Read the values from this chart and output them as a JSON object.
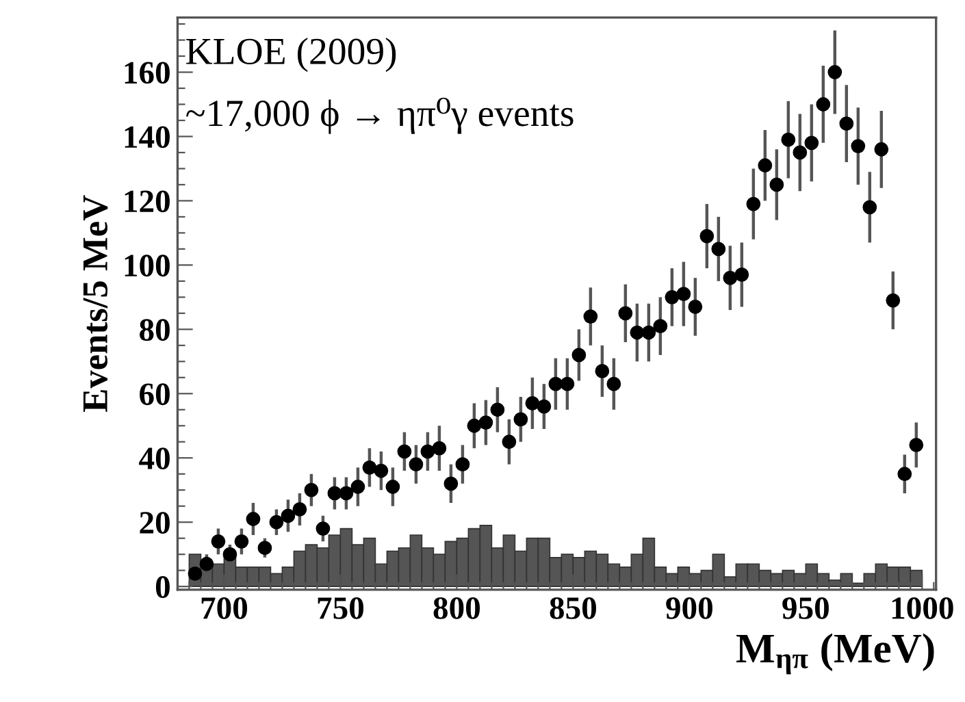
{
  "chart_data": {
    "type": "scatter",
    "xlabel": "M$_{ηπ}$ (MeV)",
    "ylabel": "Events/5 MeV",
    "annotations": [
      "KLOE (2009)",
      "~17,000 ϕ → ηπ⁰γ events"
    ],
    "xlim": [
      680,
      1006
    ],
    "ylim": [
      -1,
      177
    ],
    "xticks": [
      700,
      750,
      800,
      850,
      900,
      950,
      1000
    ],
    "yticks": [
      0,
      20,
      40,
      60,
      80,
      100,
      120,
      140,
      160
    ],
    "grid": false,
    "legend": false,
    "series": [
      {
        "type": "histogram",
        "color": "#555555",
        "bins": [
          685,
          690,
          695,
          700,
          705,
          710,
          715,
          720,
          725,
          730,
          735,
          740,
          745,
          750,
          755,
          760,
          765,
          770,
          775,
          780,
          785,
          790,
          795,
          800,
          805,
          810,
          815,
          820,
          825,
          830,
          835,
          840,
          845,
          850,
          855,
          860,
          865,
          870,
          875,
          880,
          885,
          890,
          895,
          900,
          905,
          910,
          915,
          920,
          925,
          930,
          935,
          940,
          945,
          950,
          955,
          960,
          965,
          970,
          975,
          980,
          985,
          990,
          995,
          1000
        ],
        "values": [
          10,
          7,
          7,
          10,
          6,
          6,
          6,
          4,
          6,
          11,
          13,
          12,
          16,
          18,
          13,
          15,
          7,
          11,
          12,
          16,
          12,
          10,
          14,
          15,
          18,
          19,
          12,
          16,
          11,
          15,
          15,
          9,
          10,
          9,
          11,
          10,
          7,
          6,
          10,
          15,
          6,
          4,
          6,
          4,
          5,
          10,
          3,
          7,
          7,
          5,
          4,
          5,
          4,
          7,
          4,
          2,
          4,
          1,
          4,
          7,
          6,
          6,
          5
        ]
      },
      {
        "color": "#000000",
        "marker": "circle",
        "x": [
          687.5,
          692.5,
          697.5,
          702.5,
          707.5,
          712.5,
          717.5,
          722.5,
          727.5,
          732.5,
          737.5,
          742.5,
          747.5,
          752.5,
          757.5,
          762.5,
          767.5,
          772.5,
          777.5,
          782.5,
          787.5,
          792.5,
          797.5,
          802.5,
          807.5,
          812.5,
          817.5,
          822.5,
          827.5,
          832.5,
          837.5,
          842.5,
          847.5,
          852.5,
          857.5,
          862.5,
          867.5,
          872.5,
          877.5,
          882.5,
          887.5,
          892.5,
          897.5,
          902.5,
          907.5,
          912.5,
          917.5,
          922.5,
          927.5,
          932.5,
          937.5,
          942.5,
          947.5,
          952.5,
          957.5,
          962.5,
          967.5,
          972.5,
          977.5,
          982.5,
          987.5,
          992.5,
          997.5
        ],
        "values": [
          4,
          7,
          14,
          10,
          14,
          21,
          12,
          20,
          22,
          24,
          30,
          18,
          29,
          29,
          31,
          37,
          36,
          31,
          42,
          38,
          42,
          43,
          32,
          38,
          50,
          51,
          55,
          45,
          52,
          57,
          56,
          63,
          63,
          72,
          84,
          67,
          63,
          85,
          79,
          79,
          81,
          90,
          91,
          87,
          109,
          105,
          96,
          97,
          119,
          131,
          125,
          139,
          135,
          138,
          150,
          160,
          144,
          137,
          118,
          136,
          89,
          35,
          44
        ],
        "errors": [
          2,
          3,
          4,
          3,
          4,
          5,
          3,
          4,
          5,
          5,
          5,
          4,
          5,
          5,
          6,
          6,
          6,
          6,
          6,
          6,
          6,
          7,
          6,
          6,
          7,
          7,
          7,
          7,
          7,
          8,
          7,
          8,
          8,
          8,
          9,
          8,
          8,
          9,
          9,
          9,
          9,
          9,
          10,
          9,
          10,
          10,
          10,
          10,
          11,
          11,
          11,
          12,
          12,
          12,
          12,
          13,
          12,
          12,
          11,
          12,
          9,
          6,
          7
        ]
      }
    ]
  }
}
